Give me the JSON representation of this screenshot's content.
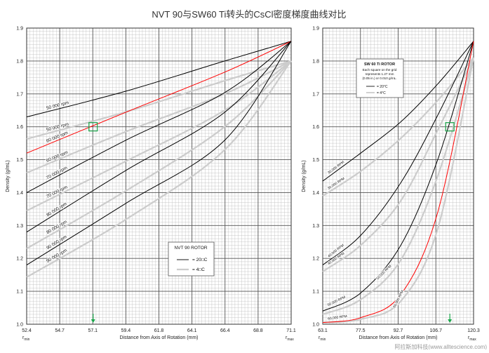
{
  "title": "NVT 90与SW60 Ti转头的CsCl密度梯度曲线对比",
  "watermark": "阿拉斯加科技(www.alltescience.com)",
  "colors": {
    "black": "#000000",
    "gray": "#cccccc",
    "red": "#ff0000",
    "marker": "#1aa64a"
  },
  "chart_data": [
    {
      "type": "line",
      "legend": {
        "title": "NVT 90 ROTOR",
        "entries": [
          "= 20□C",
          "= 4□C"
        ],
        "placement": "bottom-right"
      },
      "xlabel": "Distance from Axis of Rotation (mm)",
      "ylabel": "Density (g/mL)",
      "rmin_label": "r",
      "rmin_sub": "min",
      "rmax_label": "r",
      "rmax_sub": "max",
      "xlim": [
        52.4,
        71.1
      ],
      "ylim": [
        1.0,
        1.9
      ],
      "xticks": [
        "52.4",
        "54.7",
        "57.1",
        "59.4",
        "61.8",
        "64.1",
        "66.4",
        "68.8",
        "71.1"
      ],
      "yticks": [
        "1.0",
        "1.1",
        "1.2",
        "1.3",
        "1.4",
        "1.5",
        "1.6",
        "1.7",
        "1.8",
        "1.9"
      ],
      "grid": true,
      "x": [
        52.4,
        59.4,
        66.4,
        71.1
      ],
      "series": [
        {
          "name": "50 000 rpm",
          "temp": "20C",
          "color": "black",
          "values": [
            1.63,
            1.708,
            1.8,
            1.86
          ]
        },
        {
          "name": "50 000 rpm",
          "temp": "4C",
          "color": "gray",
          "values": [
            1.563,
            1.645,
            1.74,
            1.8
          ]
        },
        {
          "name": "60 000 rpm",
          "temp": "20C",
          "color": "red",
          "values": [
            1.52,
            1.644,
            1.766,
            1.86
          ]
        },
        {
          "name": "60 000 rpm",
          "temp": "4C",
          "color": "gray",
          "values": [
            1.46,
            1.585,
            1.7,
            1.8
          ]
        },
        {
          "name": "70 000 rpm",
          "temp": "20C",
          "color": "black",
          "values": [
            1.4,
            1.559,
            1.704,
            1.86
          ]
        },
        {
          "name": "70 000 rpm",
          "temp": "4C",
          "color": "gray",
          "values": [
            1.345,
            1.495,
            1.65,
            1.8
          ]
        },
        {
          "name": "80 000 rpm",
          "temp": "20C",
          "color": "black",
          "values": [
            1.28,
            1.467,
            1.644,
            1.86
          ]
        },
        {
          "name": "80 000 rpm",
          "temp": "4C",
          "color": "gray",
          "values": [
            1.23,
            1.405,
            1.6,
            1.8
          ]
        },
        {
          "name": "90 000 rpm",
          "temp": "20C",
          "color": "black",
          "values": [
            1.18,
            1.367,
            1.559,
            1.86
          ]
        },
        {
          "name": "90 000 rpm",
          "temp": "4C",
          "color": "gray",
          "values": [
            1.143,
            1.318,
            1.53,
            1.8
          ]
        }
      ],
      "marker": {
        "x": 57.1,
        "y": 1.6
      }
    },
    {
      "type": "line",
      "legend": {
        "title": "SW 60 Ti ROTOR",
        "note": [
          "Each square on the grid",
          "represents 1.27 mm",
          "(0.05 in.) or 0.010 g/mL."
        ],
        "entries": [
          "= 20°C",
          "= 4°C"
        ],
        "placement": "top-left"
      },
      "xlabel": "Distance from Axis of Rotation (mm)",
      "ylabel": "Density (g/mL)",
      "rmin_label": "r",
      "rmin_sub": "min",
      "rmax_label": "r",
      "rmax_sub": "max",
      "xlim": [
        63.1,
        120.3
      ],
      "ylim": [
        1.0,
        1.9
      ],
      "xticks": [
        "63.1",
        "77.5",
        "92.7",
        "106.7",
        "120.3"
      ],
      "yticks": [
        "1.0",
        "1.1",
        "1.2",
        "1.3",
        "1.4",
        "1.5",
        "1.6",
        "1.7",
        "1.8",
        "1.9"
      ],
      "grid": true,
      "x": [
        63.1,
        77.5,
        92.7,
        106.7,
        120.3
      ],
      "series": [
        {
          "name": "30,000 RPM",
          "temp": "20C",
          "color": "black",
          "values": [
            1.435,
            1.52,
            1.615,
            1.73,
            1.86
          ]
        },
        {
          "name": "30,000 RPM",
          "temp": "4C",
          "color": "gray",
          "values": [
            1.39,
            1.465,
            1.565,
            1.68,
            1.81
          ]
        },
        {
          "name": "40,000 RPM",
          "temp": "20C",
          "color": "black",
          "values": [
            1.18,
            1.27,
            1.43,
            1.635,
            1.86
          ]
        },
        {
          "name": "40,000 RPM",
          "temp": "4C",
          "color": "gray",
          "values": [
            1.16,
            1.24,
            1.375,
            1.59,
            1.81
          ]
        },
        {
          "name": "50,000 RPM",
          "temp": "20C",
          "color": "black",
          "values": [
            1.04,
            1.095,
            1.24,
            1.5,
            1.86
          ]
        },
        {
          "name": "50,000 RPM",
          "temp": "4C",
          "color": "gray",
          "values": [
            1.03,
            1.075,
            1.195,
            1.45,
            1.81
          ]
        },
        {
          "name": "60,000 RPM",
          "temp": "20C",
          "color": "red",
          "values": [
            1.005,
            1.02,
            1.09,
            1.34,
            1.86
          ]
        },
        {
          "name": "60,000 RPM",
          "temp": "4C",
          "color": "gray",
          "values": [
            1.005,
            1.015,
            1.07,
            1.29,
            1.81
          ]
        }
      ],
      "marker": {
        "x": 111.3,
        "y": 1.6
      }
    }
  ]
}
